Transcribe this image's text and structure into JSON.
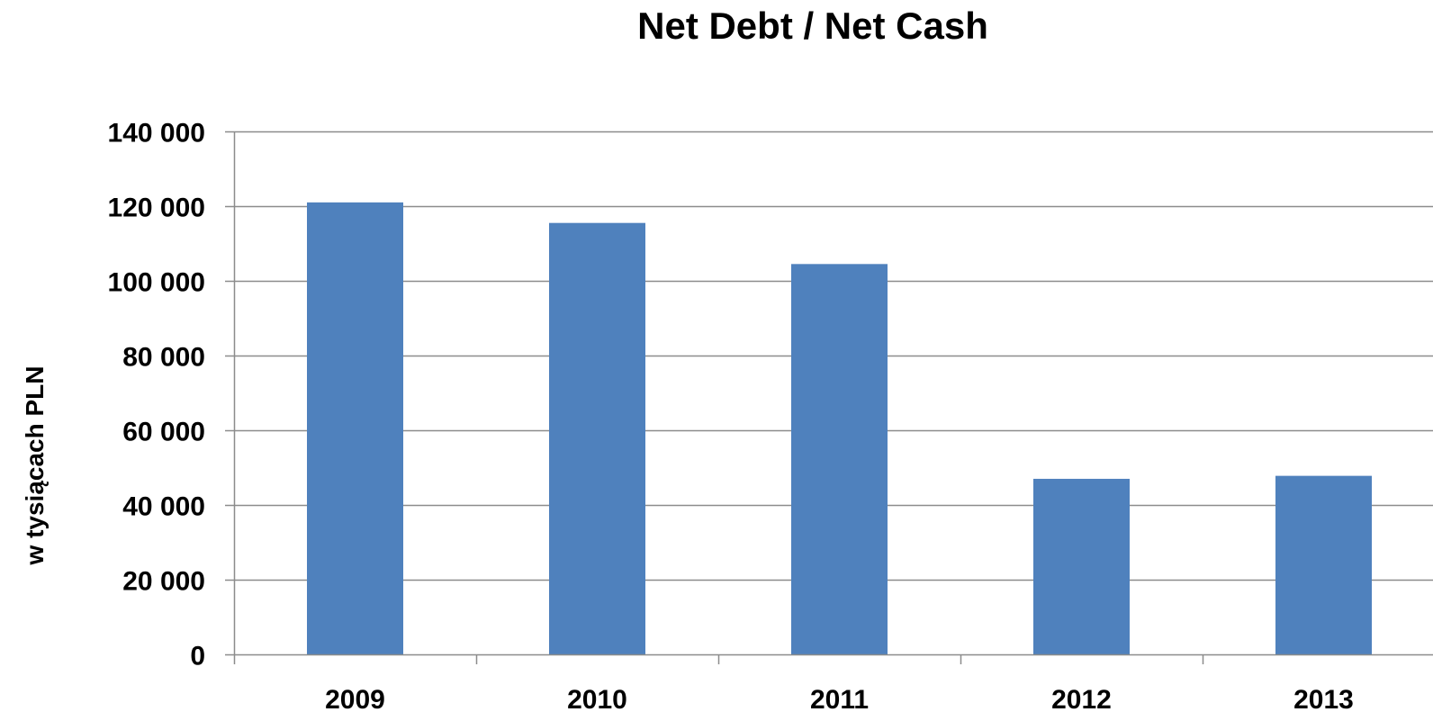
{
  "chart_data": {
    "type": "bar",
    "title": "Net Debt / Net Cash",
    "xlabel": "",
    "ylabel": "w tysiącach PLN",
    "categories": [
      "2009",
      "2010",
      "2011",
      "2012",
      "2013"
    ],
    "values": [
      121000,
      115500,
      104500,
      47000,
      47800
    ],
    "ylim": [
      0,
      140000
    ],
    "yticks": [
      0,
      20000,
      40000,
      60000,
      80000,
      100000,
      120000,
      140000
    ],
    "ytick_labels": [
      "0",
      "20 000",
      "40 000",
      "60 000",
      "80 000",
      "100 000",
      "120 000",
      "140 000"
    ],
    "grid": true,
    "legend": "none",
    "colors": {
      "bar": "#4F81BD",
      "grid": "#8C8C8C",
      "axis": "#8C8C8C",
      "text": "#000000"
    }
  }
}
